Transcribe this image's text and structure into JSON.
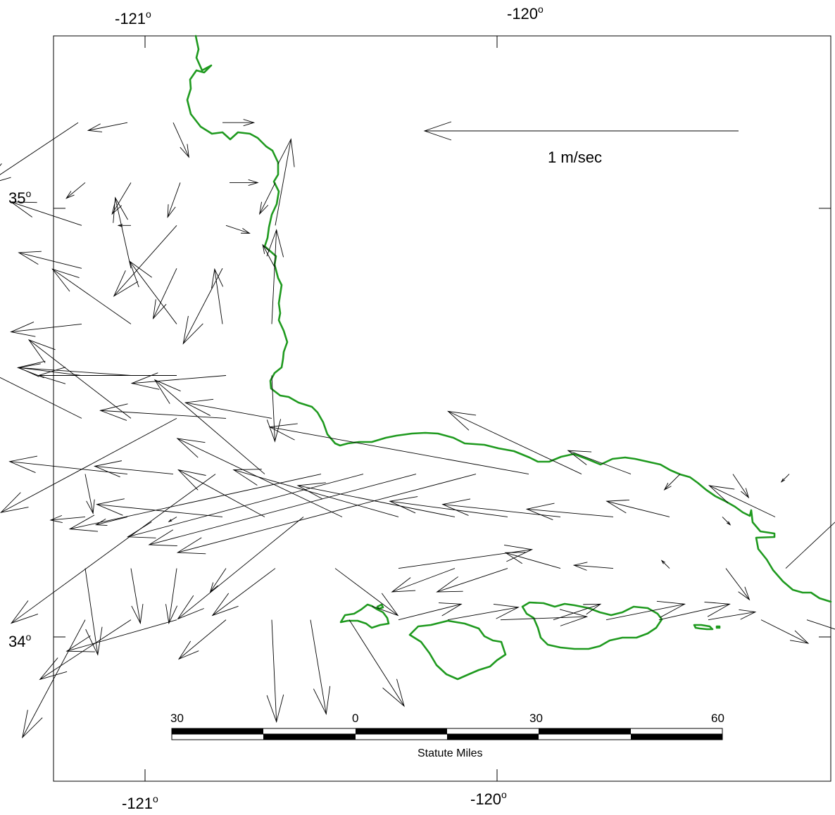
{
  "map": {
    "lon_ticks_top": [
      "-121",
      "-120"
    ],
    "lon_ticks_bottom": [
      "-121",
      "-120"
    ],
    "lat_ticks": [
      "35",
      "34"
    ],
    "degree_symbol": "o",
    "legend": {
      "label": "1 m/sec"
    },
    "scale_bar": {
      "labels": [
        "30",
        "0",
        "30",
        "60"
      ],
      "title": "Statute Miles"
    },
    "colors": {
      "coastline": "#1f9a1f",
      "vectors": "#000000",
      "frame": "#000000"
    },
    "current_vectors": [
      {
        "lon": -121.19,
        "lat": 35.2,
        "u": -0.6,
        "v": -0.4
      },
      {
        "lon": -121.05,
        "lat": 35.2,
        "u": -0.25,
        "v": -0.05
      },
      {
        "lon": -120.92,
        "lat": 35.2,
        "u": 0.1,
        "v": -0.22
      },
      {
        "lon": -120.78,
        "lat": 35.2,
        "u": 0.2,
        "v": 0.0
      },
      {
        "lon": -121.17,
        "lat": 35.06,
        "u": -0.12,
        "v": -0.1
      },
      {
        "lon": -121.04,
        "lat": 35.06,
        "u": -0.12,
        "v": -0.2
      },
      {
        "lon": -120.9,
        "lat": 35.06,
        "u": -0.08,
        "v": -0.22
      },
      {
        "lon": -120.76,
        "lat": 35.06,
        "u": 0.18,
        "v": 0.0
      },
      {
        "lon": -120.63,
        "lat": 35.06,
        "u": -0.1,
        "v": -0.2
      },
      {
        "lon": -121.18,
        "lat": 34.96,
        "u": -0.45,
        "v": 0.15
      },
      {
        "lon": -121.04,
        "lat": 34.96,
        "u": -0.08,
        "v": 0.0
      },
      {
        "lon": -120.91,
        "lat": 34.96,
        "u": -0.4,
        "v": -0.45
      },
      {
        "lon": -120.77,
        "lat": 34.96,
        "u": 0.15,
        "v": -0.05
      },
      {
        "lon": -120.63,
        "lat": 34.96,
        "u": 0.1,
        "v": 0.55
      },
      {
        "lon": -121.18,
        "lat": 34.86,
        "u": -0.4,
        "v": 0.1
      },
      {
        "lon": -121.04,
        "lat": 34.86,
        "u": -0.1,
        "v": 0.45
      },
      {
        "lon": -120.91,
        "lat": 34.86,
        "u": -0.15,
        "v": -0.32
      },
      {
        "lon": -120.78,
        "lat": 34.86,
        "u": -0.25,
        "v": -0.48
      },
      {
        "lon": -120.63,
        "lat": 34.86,
        "u": -0.08,
        "v": 0.15
      },
      {
        "lon": -121.18,
        "lat": 34.73,
        "u": -0.45,
        "v": -0.05
      },
      {
        "lon": -121.04,
        "lat": 34.73,
        "u": -0.5,
        "v": 0.35
      },
      {
        "lon": -120.91,
        "lat": 34.73,
        "u": -0.3,
        "v": 0.4
      },
      {
        "lon": -120.78,
        "lat": 34.73,
        "u": -0.05,
        "v": 0.35
      },
      {
        "lon": -120.64,
        "lat": 34.73,
        "u": 0.03,
        "v": 0.6
      },
      {
        "lon": -121.18,
        "lat": 34.61,
        "u": -0.4,
        "v": 0.05
      },
      {
        "lon": -121.04,
        "lat": 34.61,
        "u": -0.72,
        "v": 0.05
      },
      {
        "lon": -120.91,
        "lat": 34.61,
        "u": -0.88,
        "v": 0.0
      },
      {
        "lon": -120.77,
        "lat": 34.61,
        "u": -0.6,
        "v": -0.05
      },
      {
        "lon": -120.64,
        "lat": 34.61,
        "u": 0.02,
        "v": -0.42
      },
      {
        "lon": -121.18,
        "lat": 34.51,
        "u": -0.8,
        "v": 0.4
      },
      {
        "lon": -121.04,
        "lat": 34.51,
        "u": -0.65,
        "v": 0.5
      },
      {
        "lon": -120.91,
        "lat": 34.51,
        "u": -1.12,
        "v": -0.6
      },
      {
        "lon": -120.77,
        "lat": 34.51,
        "u": -0.8,
        "v": 0.05
      },
      {
        "lon": -120.64,
        "lat": 34.51,
        "u": -0.55,
        "v": 0.1
      },
      {
        "lon": -121.17,
        "lat": 34.38,
        "u": 0.05,
        "v": -0.25
      },
      {
        "lon": -121.05,
        "lat": 34.38,
        "u": -0.75,
        "v": 0.08
      },
      {
        "lon": -120.92,
        "lat": 34.38,
        "u": -0.5,
        "v": 0.05
      },
      {
        "lon": -120.8,
        "lat": 34.38,
        "u": -1.3,
        "v": -0.95
      },
      {
        "lon": -120.66,
        "lat": 34.38,
        "u": -0.7,
        "v": 0.6
      },
      {
        "lon": -120.5,
        "lat": 34.38,
        "u": -1.6,
        "v": -0.35
      },
      {
        "lon": -120.38,
        "lat": 34.38,
        "u": -1.5,
        "v": -0.4
      },
      {
        "lon": -120.23,
        "lat": 34.38,
        "u": -1.7,
        "v": -0.45
      },
      {
        "lon": -120.06,
        "lat": 34.38,
        "u": -1.9,
        "v": -0.5
      },
      {
        "lon": -119.91,
        "lat": 34.38,
        "u": -1.65,
        "v": 0.3
      },
      {
        "lon": -119.76,
        "lat": 34.38,
        "u": -0.85,
        "v": 0.4
      },
      {
        "lon": -119.62,
        "lat": 34.38,
        "u": -0.4,
        "v": 0.15
      },
      {
        "lon": -119.48,
        "lat": 34.38,
        "u": -0.1,
        "v": -0.1
      },
      {
        "lon": -119.33,
        "lat": 34.38,
        "u": 0.1,
        "v": -0.15
      },
      {
        "lon": -119.17,
        "lat": 34.38,
        "u": -0.05,
        "v": -0.05
      },
      {
        "lon": -121.17,
        "lat": 34.28,
        "u": -0.22,
        "v": -0.02
      },
      {
        "lon": -121.05,
        "lat": 34.28,
        "u": -0.2,
        "v": -0.05
      },
      {
        "lon": -120.91,
        "lat": 34.28,
        "u": -0.05,
        "v": -0.03
      },
      {
        "lon": -120.78,
        "lat": 34.28,
        "u": -0.8,
        "v": 0.08
      },
      {
        "lon": -120.66,
        "lat": 34.28,
        "u": -0.55,
        "v": 0.3
      },
      {
        "lon": -120.55,
        "lat": 34.28,
        "u": -0.8,
        "v": -0.65
      },
      {
        "lon": -120.44,
        "lat": 34.28,
        "u": -1.05,
        "v": 0.5
      },
      {
        "lon": -120.28,
        "lat": 34.28,
        "u": -1.05,
        "v": 0.3
      },
      {
        "lon": -120.12,
        "lat": 34.28,
        "u": -1.0,
        "v": 0.2
      },
      {
        "lon": -119.97,
        "lat": 34.28,
        "u": -0.75,
        "v": 0.1
      },
      {
        "lon": -119.82,
        "lat": 34.28,
        "u": -0.75,
        "v": 0.08
      },
      {
        "lon": -119.67,
        "lat": 34.28,
        "u": -0.55,
        "v": 0.05
      },
      {
        "lon": -119.51,
        "lat": 34.28,
        "u": -0.4,
        "v": 0.1
      },
      {
        "lon": -119.36,
        "lat": 34.28,
        "u": 0.05,
        "v": -0.05
      },
      {
        "lon": -119.21,
        "lat": 34.28,
        "u": -0.42,
        "v": 0.2
      },
      {
        "lon": -121.17,
        "lat": 34.16,
        "u": 0.08,
        "v": -0.55
      },
      {
        "lon": -121.04,
        "lat": 34.16,
        "u": 0.06,
        "v": -0.35
      },
      {
        "lon": -120.91,
        "lat": 34.16,
        "u": -0.05,
        "v": -0.35
      },
      {
        "lon": -120.77,
        "lat": 34.16,
        "u": -0.1,
        "v": -0.15
      },
      {
        "lon": -120.63,
        "lat": 34.16,
        "u": -0.4,
        "v": -0.3
      },
      {
        "lon": -120.46,
        "lat": 34.16,
        "u": 0.4,
        "v": -0.3
      },
      {
        "lon": -120.28,
        "lat": 34.16,
        "u": 0.85,
        "v": 0.12
      },
      {
        "lon": -120.12,
        "lat": 34.16,
        "u": -0.4,
        "v": -0.15
      },
      {
        "lon": -119.97,
        "lat": 34.16,
        "u": -0.45,
        "v": -0.15
      },
      {
        "lon": -119.82,
        "lat": 34.16,
        "u": -0.35,
        "v": 0.1
      },
      {
        "lon": -119.67,
        "lat": 34.16,
        "u": -0.25,
        "v": 0.02
      },
      {
        "lon": -119.51,
        "lat": 34.16,
        "u": -0.05,
        "v": 0.05
      },
      {
        "lon": -119.35,
        "lat": 34.16,
        "u": 0.15,
        "v": -0.2
      },
      {
        "lon": -119.18,
        "lat": 34.16,
        "u": 0.8,
        "v": 0.75
      },
      {
        "lon": -121.17,
        "lat": 34.04,
        "u": -0.4,
        "v": -0.75
      },
      {
        "lon": -121.04,
        "lat": 34.04,
        "u": -0.58,
        "v": -0.38
      },
      {
        "lon": -120.91,
        "lat": 34.04,
        "u": -0.7,
        "v": -0.2
      },
      {
        "lon": -120.77,
        "lat": 34.04,
        "u": -0.3,
        "v": -0.25
      },
      {
        "lon": -120.64,
        "lat": 34.04,
        "u": 0.03,
        "v": -0.65
      },
      {
        "lon": -120.53,
        "lat": 34.04,
        "u": 0.1,
        "v": -0.6
      },
      {
        "lon": -120.42,
        "lat": 34.04,
        "u": 0.35,
        "v": -0.55
      },
      {
        "lon": -120.28,
        "lat": 34.04,
        "u": 0.4,
        "v": 0.1
      },
      {
        "lon": -120.14,
        "lat": 34.04,
        "u": 0.45,
        "v": 0.08
      },
      {
        "lon": -119.99,
        "lat": 34.04,
        "u": 0.55,
        "v": 0.02
      },
      {
        "lon": -119.84,
        "lat": 34.04,
        "u": 0.3,
        "v": 0.1
      },
      {
        "lon": -119.69,
        "lat": 34.04,
        "u": 0.5,
        "v": 0.1
      },
      {
        "lon": -119.54,
        "lat": 34.04,
        "u": 0.45,
        "v": 0.1
      },
      {
        "lon": -119.4,
        "lat": 34.04,
        "u": 0.3,
        "v": 0.05
      },
      {
        "lon": -119.25,
        "lat": 34.04,
        "u": 0.3,
        "v": -0.15
      },
      {
        "lon": -119.12,
        "lat": 34.04,
        "u": 0.45,
        "v": -0.15
      }
    ]
  }
}
